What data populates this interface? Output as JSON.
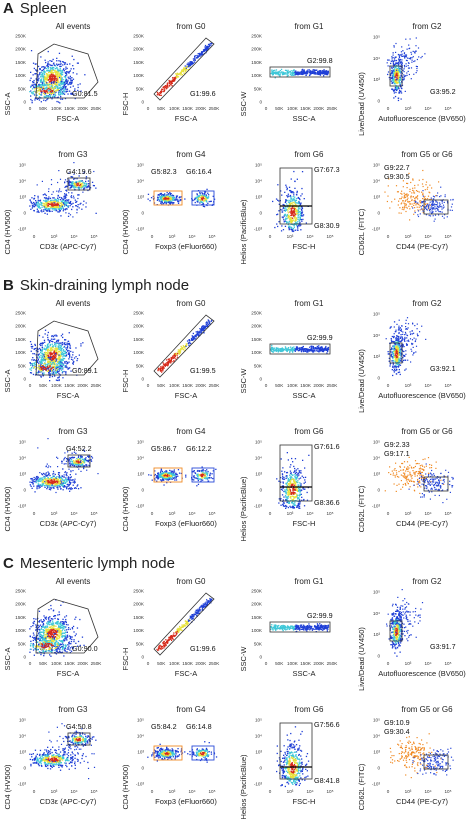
{
  "sections": [
    {
      "letter": "A",
      "title": "Spleen",
      "panels": [
        {
          "title": "All events",
          "xlabel": "FSC-A",
          "ylabel": "SSC-A",
          "gates": [
            "G0:81.5"
          ]
        },
        {
          "title": "from G0",
          "xlabel": "FSC-A",
          "ylabel": "FSC-H",
          "gates": [
            "G1:99.6"
          ]
        },
        {
          "title": "from G1",
          "xlabel": "SSC-A",
          "ylabel": "SSC-W",
          "gates": [
            "G2:99.8"
          ]
        },
        {
          "title": "from G2",
          "xlabel": "Autofluorescence (BV650)",
          "ylabel": "Live/Dead (UV450)",
          "gates": [
            "G3:95.2"
          ]
        },
        {
          "title": "from G3",
          "xlabel": "CD3ε (APC-Cy7)",
          "ylabel": "CD4 (HV500)",
          "gates": [
            "G4:19.6"
          ]
        },
        {
          "title": "from G4",
          "xlabel": "Foxp3 (eFluor660)",
          "ylabel": "CD4 (HV500)",
          "gates": [
            "G5:82.3",
            "G6:16.4"
          ]
        },
        {
          "title": "from G6",
          "xlabel": "FSC-H",
          "ylabel": "Helios (PacificBlue)",
          "gates": [
            "G7:67.3",
            "G8:30.9"
          ]
        },
        {
          "title": "from G5 or G6",
          "xlabel": "CD44 (PE-Cy7)",
          "ylabel": "CD62L (FITC)",
          "gates": [
            "G9:22.7",
            "G9:30.5"
          ]
        }
      ]
    },
    {
      "letter": "B",
      "title": "Skin-draining lymph node",
      "panels": [
        {
          "title": "All events",
          "xlabel": "FSC-A",
          "ylabel": "SSC-A",
          "gates": [
            "G0:89.1"
          ]
        },
        {
          "title": "from G0",
          "xlabel": "FSC-A",
          "ylabel": "FSC-H",
          "gates": [
            "G1:99.5"
          ]
        },
        {
          "title": "from G1",
          "xlabel": "SSC-A",
          "ylabel": "SSC-W",
          "gates": [
            "G2:99.9"
          ]
        },
        {
          "title": "from G2",
          "xlabel": "Autofluorescence (BV650)",
          "ylabel": "Live/Dead (UV450)",
          "gates": [
            "G3:92.1"
          ]
        },
        {
          "title": "from G3",
          "xlabel": "CD3ε (APC-Cy7)",
          "ylabel": "CD4 (HV500)",
          "gates": [
            "G4:52.2"
          ]
        },
        {
          "title": "from G4",
          "xlabel": "Foxp3 (eFluor660)",
          "ylabel": "CD4 (HV500)",
          "gates": [
            "G5:86.7",
            "G6:12.2"
          ]
        },
        {
          "title": "from G6",
          "xlabel": "FSC-H",
          "ylabel": "Helios (PacificBlue)",
          "gates": [
            "G7:61.6",
            "G8:36.6"
          ]
        },
        {
          "title": "from G5 or G6",
          "xlabel": "CD44 (PE-Cy7)",
          "ylabel": "CD62L (FITC)",
          "gates": [
            "G9:2.33",
            "G9:17.1"
          ]
        }
      ]
    },
    {
      "letter": "C",
      "title": "Mesenteric lymph node",
      "panels": [
        {
          "title": "All events",
          "xlabel": "FSC-A",
          "ylabel": "SSC-A",
          "gates": [
            "G0:90.0"
          ]
        },
        {
          "title": "from G0",
          "xlabel": "FSC-A",
          "ylabel": "FSC-H",
          "gates": [
            "G1:99.6"
          ]
        },
        {
          "title": "from G1",
          "xlabel": "SSC-A",
          "ylabel": "SSC-W",
          "gates": [
            "G2:99.9"
          ]
        },
        {
          "title": "from G2",
          "xlabel": "Autofluorescence (BV650)",
          "ylabel": "Live/Dead (UV450)",
          "gates": [
            "G3:91.7"
          ]
        },
        {
          "title": "from G3",
          "xlabel": "CD3ε (APC-Cy7)",
          "ylabel": "CD4 (HV500)",
          "gates": [
            "G4:50.8"
          ]
        },
        {
          "title": "from G4",
          "xlabel": "Foxp3 (eFluor660)",
          "ylabel": "CD4 (HV500)",
          "gates": [
            "G5:84.2",
            "G6:14.8"
          ]
        },
        {
          "title": "from G6",
          "xlabel": "FSC-H",
          "ylabel": "Helios (PacificBlue)",
          "gates": [
            "G7:56.6",
            "G8:41.8"
          ]
        },
        {
          "title": "from G5 or G6",
          "xlabel": "CD44 (PE-Cy7)",
          "ylabel": "CD62L (FITC)",
          "gates": [
            "G9:10.9",
            "G9:30.4"
          ]
        }
      ]
    }
  ],
  "ticks": {
    "linear_x": [
      "0",
      "50K",
      "100K",
      "150K",
      "200K",
      "250K"
    ],
    "linear_y": [
      "0",
      "50K",
      "100K",
      "150K",
      "200K",
      "250K"
    ],
    "log_x": [
      "0",
      "10³",
      "10⁴",
      "10⁵"
    ],
    "log_y": [
      "0",
      "10³",
      "10⁴",
      "10⁵"
    ],
    "log_y_neg": [
      "-10³",
      "0",
      "10³",
      "10⁴",
      "10⁵"
    ]
  },
  "colors": {
    "density_low": "#1f3fd6",
    "density_mid": "#3fc7d8",
    "density_high_mid": "#e8e23a",
    "density_high": "#d62a1a",
    "g5_orange": "#f08a24",
    "g6_blue": "#2a4ad8",
    "gate": "#333333"
  }
}
